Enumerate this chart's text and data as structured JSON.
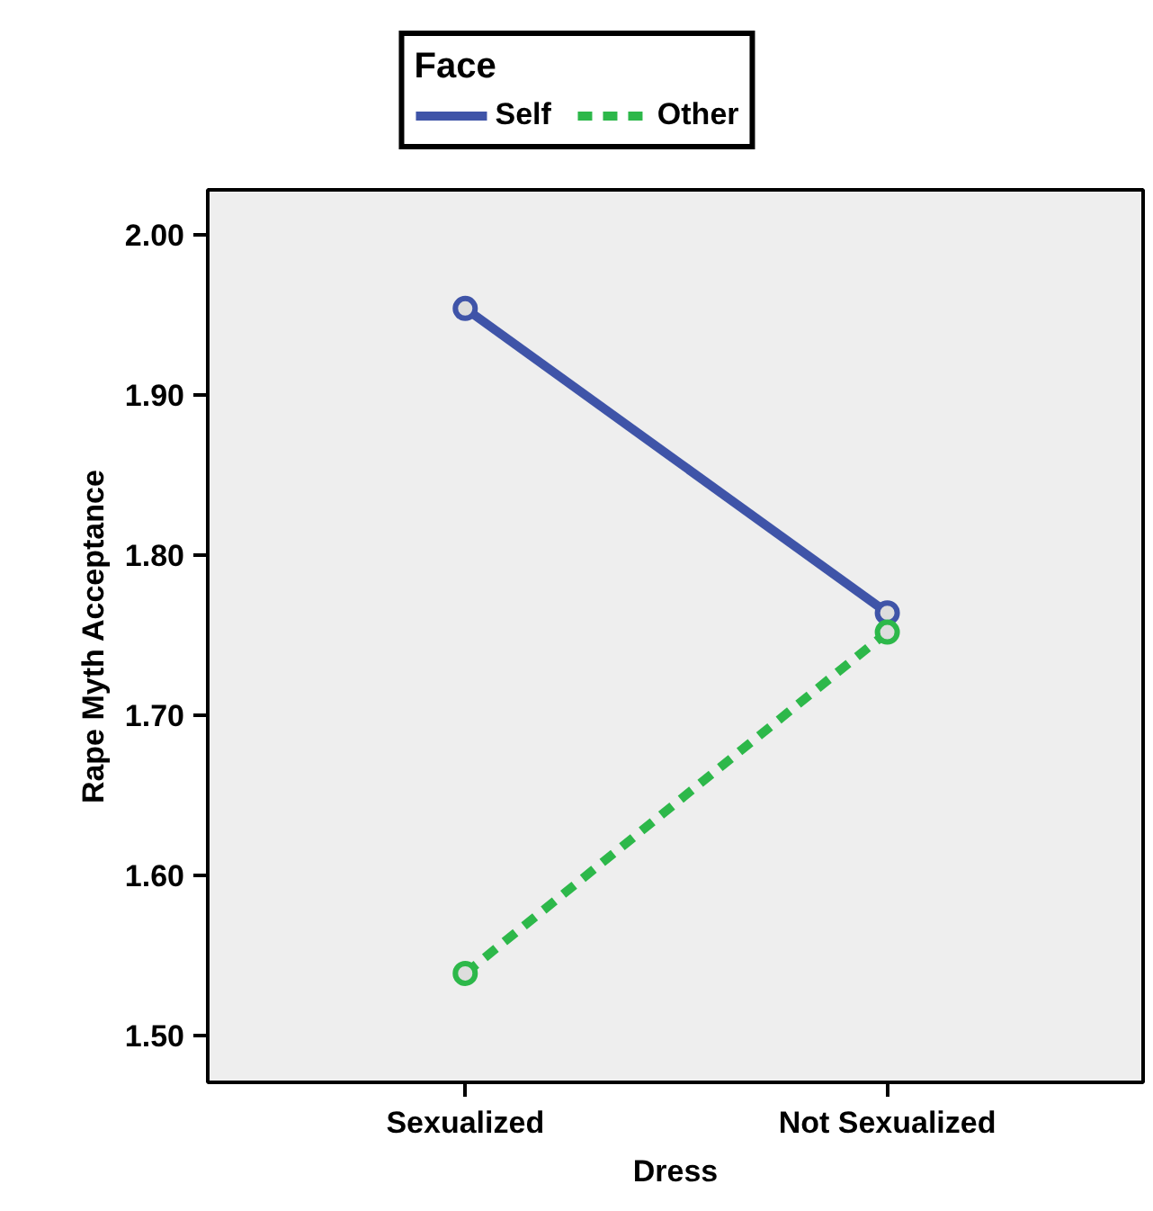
{
  "chart_data": {
    "type": "line",
    "xlabel": "Dress",
    "ylabel": "Rape Myth Acceptance",
    "legend_title": "Face",
    "categories": [
      "Sexualized",
      "Not Sexualized"
    ],
    "series": [
      {
        "name": "Self",
        "color": "#3f54a8",
        "values": [
          1.954,
          1.764
        ],
        "line_style": "solid"
      },
      {
        "name": "Other",
        "color": "#2db84a",
        "values": [
          1.539,
          1.752
        ],
        "line_style": "dashed"
      }
    ],
    "marker": "circle",
    "ylim": [
      1.471,
      2.028
    ],
    "yticks": [
      {
        "value": 1.5,
        "label": "1.50"
      },
      {
        "value": 1.6,
        "label": "1.60"
      },
      {
        "value": 1.7,
        "label": "1.70"
      },
      {
        "value": 1.8,
        "label": "1.80"
      },
      {
        "value": 1.9,
        "label": "1.90"
      },
      {
        "value": 2.0,
        "label": "2.00"
      }
    ],
    "grid": false,
    "legend": "top"
  }
}
